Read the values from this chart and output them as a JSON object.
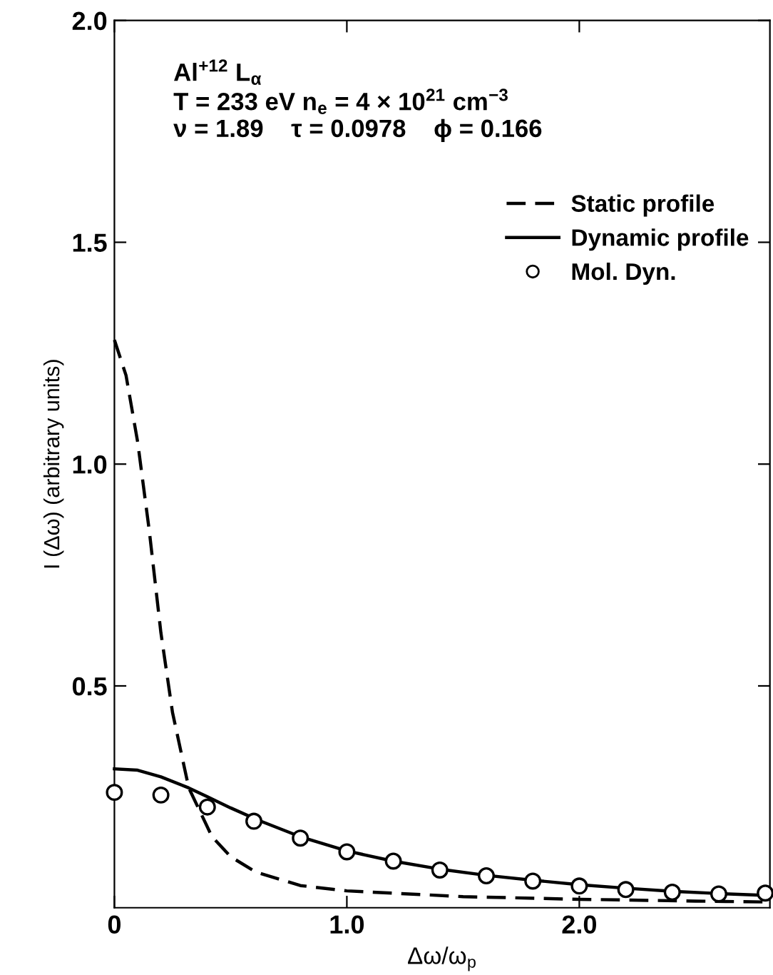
{
  "chart_data": {
    "type": "line",
    "xlabel": "Δω/ω$_{p}$",
    "ylabel": "I (Δω) (arbitrary units)",
    "annotations": [
      "Al$^{+12}$ L$_{α}$",
      "T = 233 eV n$_{e}$ = 4 × 10$^{21}$ cm$^{−3}$",
      "ν = 1.89    τ = 0.0978    ϕ = 0.166"
    ],
    "xlim": [
      0,
      2.82
    ],
    "ylim": [
      0,
      2.0
    ],
    "xticks": [
      {
        "value": 0,
        "label": "0"
      },
      {
        "value": 1,
        "label": "1.0"
      },
      {
        "value": 2,
        "label": "2.0"
      }
    ],
    "yticks": [
      0.5,
      {
        "value": 1,
        "label": "1.0"
      },
      1.5,
      {
        "value": 2,
        "label": "2.0"
      }
    ],
    "grid": false,
    "legend": "top right",
    "series": [
      {
        "name": "Static profile",
        "line_style": "dashed",
        "marker": "none",
        "color": "#000000",
        "x": [
          0,
          0.05,
          0.1,
          0.15,
          0.2,
          0.25,
          0.32,
          0.42,
          0.5,
          0.61,
          0.8,
          1.0,
          1.5,
          2.0,
          2.5,
          2.8
        ],
        "values": [
          1.28,
          1.2,
          1.05,
          0.85,
          0.62,
          0.44,
          0.27,
          0.16,
          0.115,
          0.08,
          0.05,
          0.038,
          0.025,
          0.019,
          0.015,
          0.013
        ]
      },
      {
        "name": "Dynamic profile",
        "line_style": "solid",
        "marker": "none",
        "color": "#000000",
        "x": [
          0,
          0.1,
          0.2,
          0.32,
          0.4,
          0.5,
          0.62,
          0.8,
          1.0,
          1.2,
          1.4,
          1.6,
          1.8,
          2.0,
          2.2,
          2.4,
          2.6,
          2.8
        ],
        "values": [
          0.313,
          0.31,
          0.295,
          0.27,
          0.25,
          0.225,
          0.197,
          0.16,
          0.128,
          0.105,
          0.087,
          0.073,
          0.062,
          0.052,
          0.044,
          0.037,
          0.032,
          0.028
        ]
      },
      {
        "name": "Mol. Dyn.",
        "type": "scatter",
        "marker": "circle",
        "color": "#000000",
        "x": [
          0,
          0.2,
          0.4,
          0.6,
          0.8,
          1.0,
          1.2,
          1.4,
          1.6,
          1.8,
          2.0,
          2.2,
          2.4,
          2.6,
          2.8
        ],
        "values": [
          0.26,
          0.254,
          0.227,
          0.195,
          0.157,
          0.126,
          0.105,
          0.085,
          0.072,
          0.06,
          0.049,
          0.041,
          0.035,
          0.031,
          0.033
        ]
      }
    ]
  }
}
